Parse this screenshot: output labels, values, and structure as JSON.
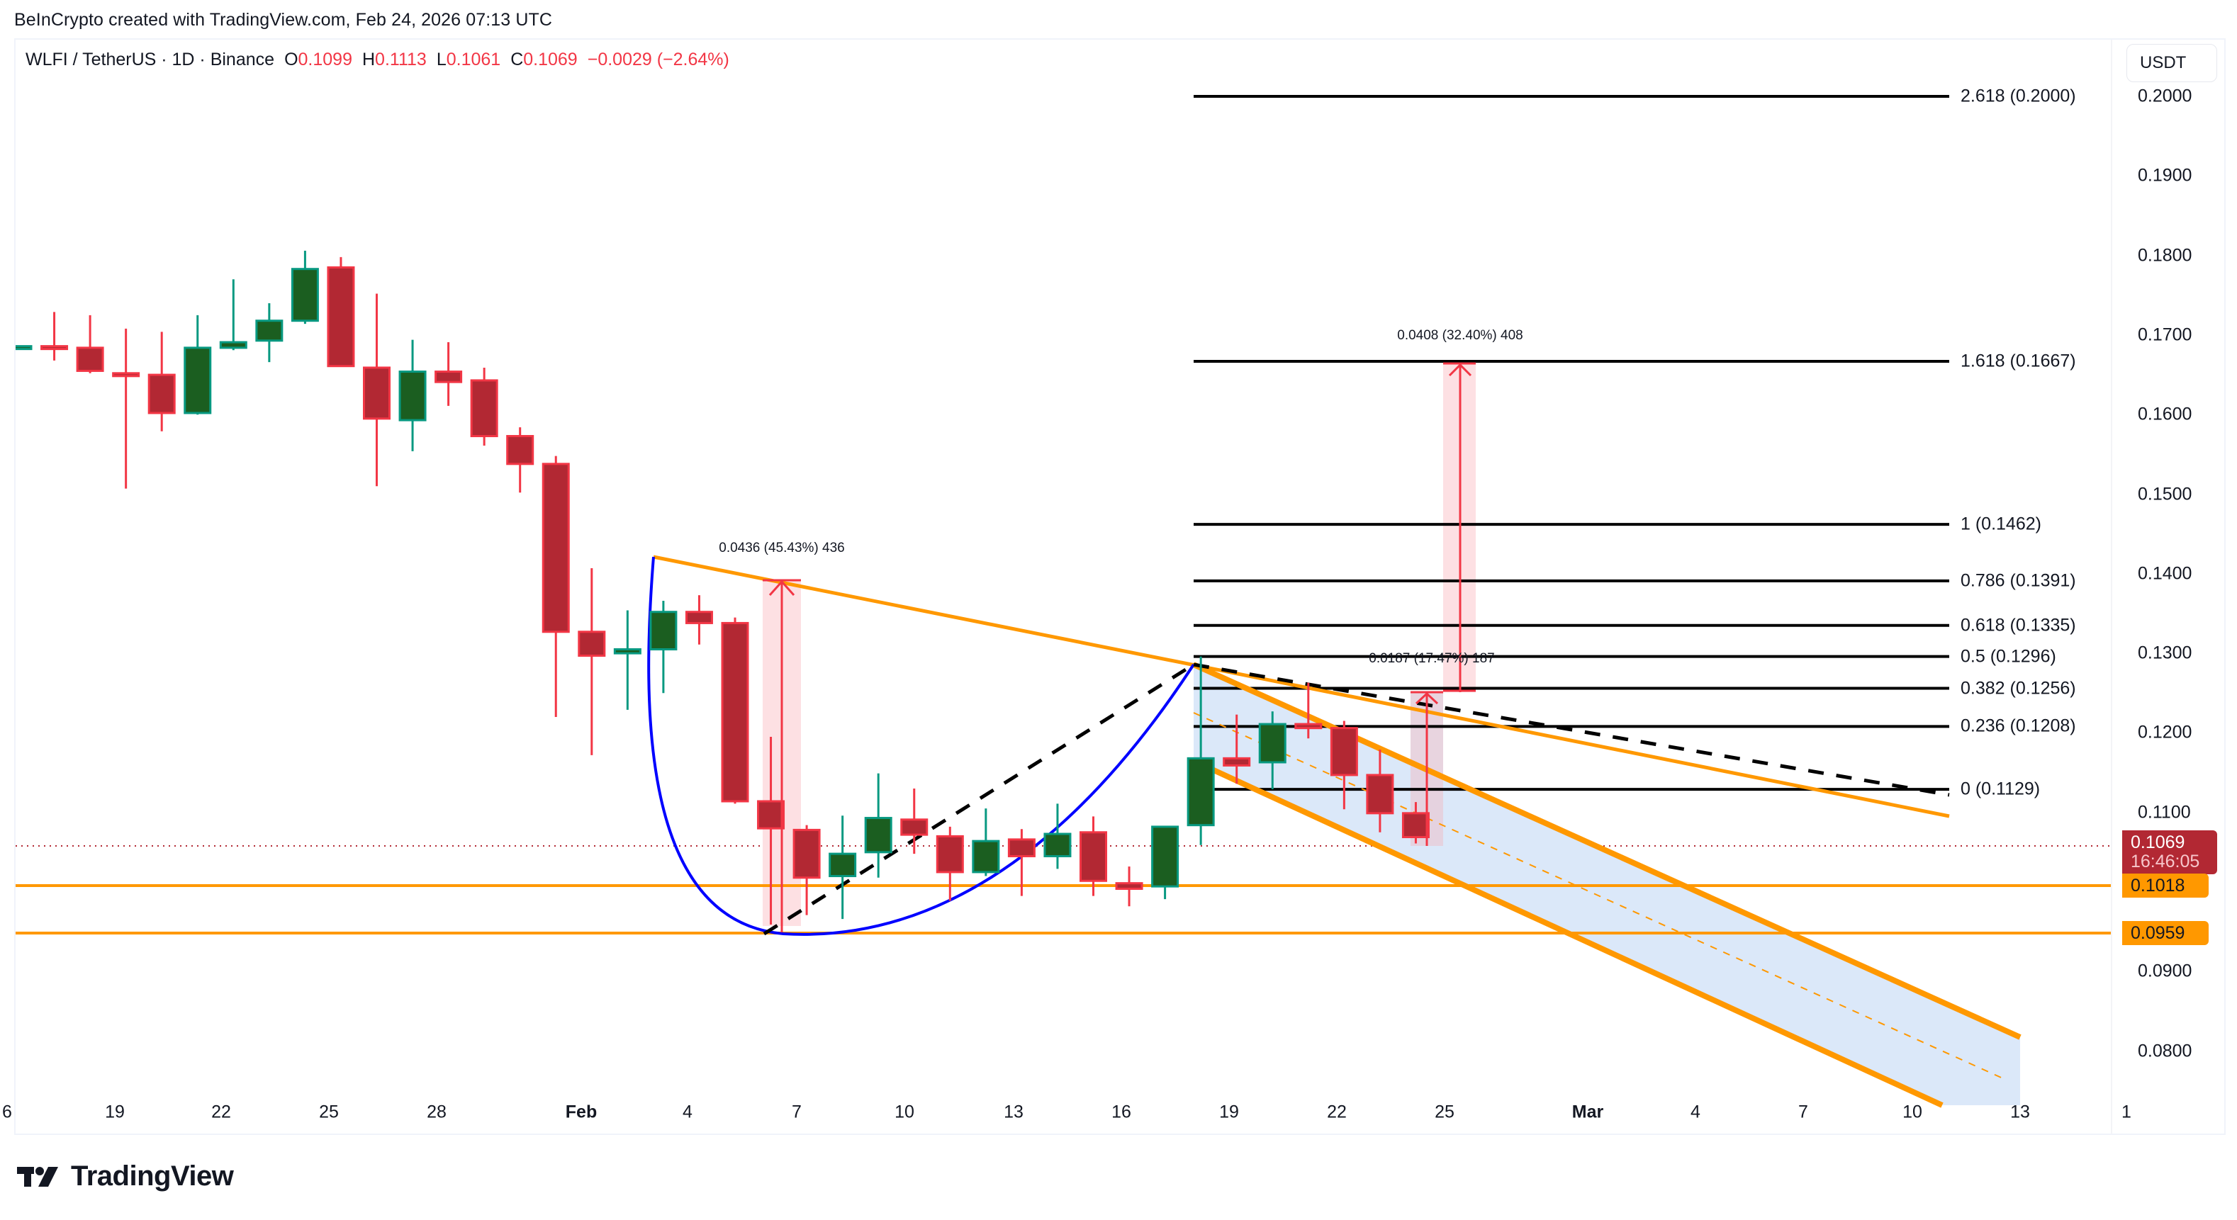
{
  "header": {
    "credit": "BeInCrypto created with TradingView.com, Feb 24, 2026 07:13 UTC"
  },
  "legend": {
    "symbol": "WLFI / TetherUS · 1D · Binance",
    "open_label": "O",
    "open": "0.1099",
    "high_label": "H",
    "high": "0.1113",
    "low_label": "L",
    "low": "0.1061",
    "close_label": "C",
    "close": "0.1069",
    "change": "−0.0029 (−2.64%)"
  },
  "price_axis": {
    "unit": "USDT",
    "ticks": [
      "0.2000",
      "0.1900",
      "0.1800",
      "0.1700",
      "0.1600",
      "0.1500",
      "0.1400",
      "0.1300",
      "0.1200",
      "0.1100",
      "0.1000",
      "0.0900",
      "0.0800"
    ],
    "last_price": "0.1069",
    "countdown": "16:46:05",
    "support_1": "0.1018",
    "support_2": "0.0959"
  },
  "time_axis": {
    "labels": [
      "6",
      "19",
      "22",
      "25",
      "28",
      "Feb",
      "4",
      "7",
      "10",
      "13",
      "16",
      "19",
      "22",
      "25",
      "Mar",
      "4",
      "7",
      "10",
      "13",
      "1"
    ]
  },
  "fib_levels": [
    {
      "label": "2.618 (0.2000)",
      "ratio": 2.618,
      "price": 0.2
    },
    {
      "label": "1.618 (0.1667)",
      "ratio": 1.618,
      "price": 0.1667
    },
    {
      "label": "1 (0.1462)",
      "ratio": 1,
      "price": 0.1462
    },
    {
      "label": "0.786 (0.1391)",
      "ratio": 0.786,
      "price": 0.1391
    },
    {
      "label": "0.618 (0.1335)",
      "ratio": 0.618,
      "price": 0.1335
    },
    {
      "label": "0.5 (0.1296)",
      "ratio": 0.5,
      "price": 0.1296
    },
    {
      "label": "0.382 (0.1256)",
      "ratio": 0.382,
      "price": 0.1256
    },
    {
      "label": "0.236 (0.1208)",
      "ratio": 0.236,
      "price": 0.1208
    },
    {
      "label": "0 (0.1129)",
      "ratio": 0,
      "price": 0.1129
    }
  ],
  "measurements": [
    {
      "label": "0.0436 (45.43%) 436"
    },
    {
      "label": "0.0187 (17.47%) 187"
    },
    {
      "label": "0.0408 (32.40%) 408"
    }
  ],
  "colors": {
    "up_body": "#1b5e20",
    "up_border": "#089981",
    "down_body": "#b22833",
    "down_border": "#f23645",
    "trendline": "#ff9800",
    "curve": "#0000ff",
    "channel_fill": "#dbe8f9",
    "measure_fill": "#fde0e3",
    "measure_line": "#f23645"
  },
  "logo": {
    "text": "TradingView"
  },
  "chart_data": {
    "type": "candlestick",
    "title": "WLFI / TetherUS · 1D · Binance",
    "xlabel": "",
    "ylabel": "USDT",
    "ylim": [
      0.0752,
      0.2062
    ],
    "grid": false,
    "candles": [
      {
        "o": 0.1686,
        "h": 0.1686,
        "l": 0.1686,
        "c": 0.1686
      },
      {
        "o": 0.1686,
        "h": 0.1729,
        "l": 0.1668,
        "c": 0.1684
      },
      {
        "o": 0.1684,
        "h": 0.1725,
        "l": 0.1652,
        "c": 0.1655
      },
      {
        "o": 0.1652,
        "h": 0.1708,
        "l": 0.1507,
        "c": 0.165
      },
      {
        "o": 0.165,
        "h": 0.1704,
        "l": 0.1579,
        "c": 0.1602
      },
      {
        "o": 0.1602,
        "h": 0.1725,
        "l": 0.16,
        "c": 0.1684
      },
      {
        "o": 0.1684,
        "h": 0.177,
        "l": 0.1681,
        "c": 0.1691
      },
      {
        "o": 0.1693,
        "h": 0.174,
        "l": 0.1666,
        "c": 0.1718
      },
      {
        "o": 0.1718,
        "h": 0.1806,
        "l": 0.1714,
        "c": 0.1783
      },
      {
        "o": 0.1785,
        "h": 0.1798,
        "l": 0.1661,
        "c": 0.1661
      },
      {
        "o": 0.1659,
        "h": 0.1752,
        "l": 0.151,
        "c": 0.1595
      },
      {
        "o": 0.1593,
        "h": 0.1694,
        "l": 0.1554,
        "c": 0.1654
      },
      {
        "o": 0.1654,
        "h": 0.1691,
        "l": 0.1611,
        "c": 0.1641
      },
      {
        "o": 0.1643,
        "h": 0.1659,
        "l": 0.1561,
        "c": 0.1573
      },
      {
        "o": 0.1573,
        "h": 0.1584,
        "l": 0.1502,
        "c": 0.1538
      },
      {
        "o": 0.1538,
        "h": 0.1548,
        "l": 0.122,
        "c": 0.1327
      },
      {
        "o": 0.1327,
        "h": 0.1407,
        "l": 0.1172,
        "c": 0.1297
      },
      {
        "o": 0.13,
        "h": 0.1354,
        "l": 0.1229,
        "c": 0.1305
      },
      {
        "o": 0.1305,
        "h": 0.1366,
        "l": 0.125,
        "c": 0.1352
      },
      {
        "o": 0.1352,
        "h": 0.1373,
        "l": 0.1311,
        "c": 0.1338
      },
      {
        "o": 0.1338,
        "h": 0.1345,
        "l": 0.1111,
        "c": 0.1114
      },
      {
        "o": 0.1114,
        "h": 0.1195,
        "l": 0.0959,
        "c": 0.108
      },
      {
        "o": 0.1078,
        "h": 0.1084,
        "l": 0.0971,
        "c": 0.1018
      },
      {
        "o": 0.102,
        "h": 0.1096,
        "l": 0.0966,
        "c": 0.1048
      },
      {
        "o": 0.105,
        "h": 0.1149,
        "l": 0.1018,
        "c": 0.1093
      },
      {
        "o": 0.1091,
        "h": 0.113,
        "l": 0.1048,
        "c": 0.1072
      },
      {
        "o": 0.107,
        "h": 0.1082,
        "l": 0.0989,
        "c": 0.1025
      },
      {
        "o": 0.1025,
        "h": 0.1105,
        "l": 0.102,
        "c": 0.1064
      },
      {
        "o": 0.1066,
        "h": 0.1079,
        "l": 0.0995,
        "c": 0.1045
      },
      {
        "o": 0.1045,
        "h": 0.1111,
        "l": 0.1029,
        "c": 0.1073
      },
      {
        "o": 0.1075,
        "h": 0.1095,
        "l": 0.0995,
        "c": 0.1014
      },
      {
        "o": 0.1011,
        "h": 0.1032,
        "l": 0.0982,
        "c": 0.1004
      },
      {
        "o": 0.1007,
        "h": 0.1082,
        "l": 0.0991,
        "c": 0.1082
      },
      {
        "o": 0.1084,
        "h": 0.1296,
        "l": 0.1059,
        "c": 0.1168
      },
      {
        "o": 0.1168,
        "h": 0.1223,
        "l": 0.1136,
        "c": 0.1159
      },
      {
        "o": 0.1163,
        "h": 0.1227,
        "l": 0.1129,
        "c": 0.1211
      },
      {
        "o": 0.1211,
        "h": 0.1263,
        "l": 0.1193,
        "c": 0.1206
      },
      {
        "o": 0.1206,
        "h": 0.1215,
        "l": 0.1104,
        "c": 0.1147
      },
      {
        "o": 0.1147,
        "h": 0.1179,
        "l": 0.1075,
        "c": 0.1099
      },
      {
        "o": 0.1099,
        "h": 0.1113,
        "l": 0.1061,
        "c": 0.1069
      }
    ],
    "horizontal_lines": [
      0.1018,
      0.0959
    ],
    "fib_extension": {
      "from": 0.1129,
      "to": 0.1462,
      "levels": [
        0,
        0.236,
        0.382,
        0.5,
        0.618,
        0.786,
        1,
        1.618,
        2.618
      ]
    },
    "annotations": [
      "0.0436 (45.43%) 436",
      "0.0187 (17.47%) 187",
      "0.0408 (32.40%) 408",
      "Descending channel (blue fill)",
      "Cup-shaped curve (blue)"
    ]
  }
}
